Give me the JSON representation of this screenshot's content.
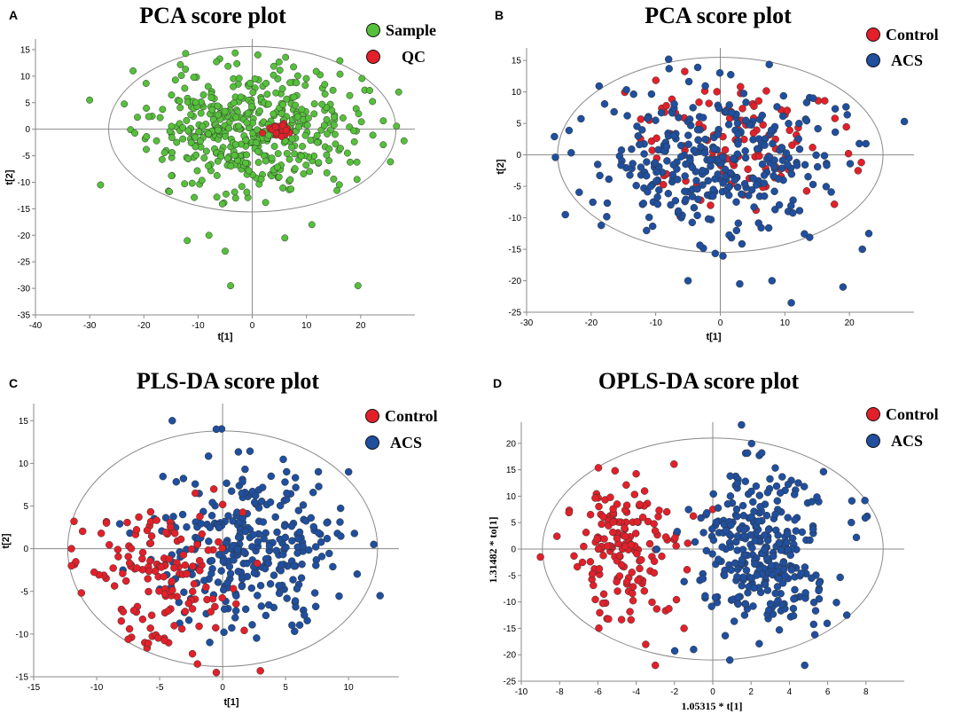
{
  "colors": {
    "green": "#55c03a",
    "red": "#e3202a",
    "blue": "#1f4f9e",
    "axis": "#8a8a8a",
    "ellipse": "#8a8a8a"
  },
  "chart_data": [
    {
      "letter": "A",
      "type": "scatter",
      "title": "PCA score plot",
      "xlabel": "t[1]",
      "ylabel": "t[2]",
      "xlim": [
        -40,
        30
      ],
      "ylim": [
        -35,
        17
      ],
      "xticks": [
        -40,
        -30,
        -20,
        -10,
        0,
        10,
        20
      ],
      "yticks": [
        15,
        10,
        5,
        0,
        -5,
        -10,
        -15,
        -20,
        -25,
        -30,
        -35
      ],
      "ellipse": {
        "rx": 26.5,
        "ry": 15.6
      },
      "legend": [
        {
          "label": "Sample",
          "color": "green"
        },
        {
          "label": "QC",
          "color": "red"
        }
      ],
      "series": [
        {
          "name": "Sample",
          "color": "green",
          "n": 470,
          "spread": [
            9.5,
            6.3
          ],
          "seed": 11,
          "extra": [
            [
              -30,
              5.5
            ],
            [
              -28,
              -10.5
            ],
            [
              -22,
              11
            ],
            [
              19.5,
              -29.5
            ],
            [
              -4,
              -29.5
            ],
            [
              -5,
              -23
            ],
            [
              28,
              -2.2
            ],
            [
              27,
              7
            ],
            [
              -12,
              -21
            ],
            [
              -8,
              -20
            ],
            [
              6,
              -20.5
            ],
            [
              11,
              -18
            ]
          ]
        },
        {
          "name": "QC",
          "color": "red",
          "n": 22,
          "center": [
            4.3,
            0
          ],
          "spread": [
            1.3,
            0.9
          ],
          "seed": 5,
          "extra": []
        }
      ]
    },
    {
      "letter": "B",
      "type": "scatter",
      "title": "PCA score plot",
      "xlabel": "t[1]",
      "ylabel": "t[2]",
      "xlim": [
        -30,
        30
      ],
      "ylim": [
        -25,
        17
      ],
      "xticks": [
        -30,
        -20,
        -10,
        0,
        10,
        20
      ],
      "yticks": [
        15,
        10,
        5,
        0,
        -5,
        -10,
        -15,
        -20,
        -25
      ],
      "ellipse": {
        "rx": 25.2,
        "ry": 15.5
      },
      "legend": [
        {
          "label": "Control",
          "color": "red"
        },
        {
          "label": "ACS",
          "color": "blue"
        }
      ],
      "series": [
        {
          "name": "Control",
          "color": "red",
          "n": 110,
          "center": [
            2,
            2
          ],
          "spread": [
            9,
            5.5
          ],
          "seed": 23,
          "extra": []
        },
        {
          "name": "ACS",
          "color": "blue",
          "n": 330,
          "center": [
            0,
            -1
          ],
          "spread": [
            9.5,
            6.3
          ],
          "seed": 37,
          "extra": [
            [
              -8,
              15.2
            ],
            [
              11,
              -23.5
            ],
            [
              8,
              -20
            ],
            [
              -5,
              -20
            ],
            [
              3,
              -20.5
            ],
            [
              28.5,
              5.3
            ],
            [
              22,
              -15
            ],
            [
              19,
              -21
            ],
            [
              23,
              -12.5
            ],
            [
              -24,
              -9.5
            ]
          ]
        }
      ]
    },
    {
      "letter": "C",
      "type": "scatter",
      "title": "PLS-DA score plot",
      "xlabel": "t[1]",
      "ylabel": "t[2]",
      "xlim": [
        -15,
        14
      ],
      "ylim": [
        -15,
        17
      ],
      "xticks": [
        -15,
        -10,
        -5,
        0,
        5,
        10
      ],
      "yticks": [
        15,
        10,
        5,
        0,
        -5,
        -10,
        -15
      ],
      "ellipse": {
        "rx": 12.3,
        "ry": 13.8
      },
      "legend": [
        {
          "label": "Control",
          "color": "red"
        },
        {
          "label": "ACS",
          "color": "blue"
        }
      ],
      "series": [
        {
          "name": "ACS",
          "color": "blue",
          "n": 300,
          "center": [
            2.2,
            0.5
          ],
          "spread": [
            3.6,
            5.3
          ],
          "seed": 41,
          "extra": [
            [
              -4,
              15
            ],
            [
              12,
              0.5
            ],
            [
              12.5,
              -5.5
            ],
            [
              10,
              9
            ],
            [
              -0.5,
              14
            ]
          ]
        },
        {
          "name": "Control",
          "color": "red",
          "n": 145,
          "center": [
            -5.2,
            -3.2
          ],
          "spread": [
            3.0,
            4.2
          ],
          "seed": 53,
          "extra": [
            [
              -12,
              0
            ],
            [
              -11.8,
              3.2
            ],
            [
              -12,
              -2
            ],
            [
              -0.5,
              -14.5
            ],
            [
              3,
              -14.3
            ],
            [
              -2,
              -13.5
            ]
          ]
        }
      ]
    },
    {
      "letter": "D",
      "type": "scatter",
      "title": "OPLS-DA score plot",
      "xlabel": "1.05315 * t[1]",
      "ylabel": "1.31482 * to[1]",
      "xlim": [
        -10,
        10
      ],
      "ylim": [
        -25,
        24
      ],
      "xticks": [
        -10,
        -8,
        -6,
        -4,
        -2,
        0,
        2,
        4,
        6,
        8
      ],
      "yticks": [
        20,
        15,
        10,
        5,
        0,
        -5,
        -10,
        -15,
        -20,
        -25
      ],
      "ellipse": {
        "rx": 8.9,
        "ry": 21.0
      },
      "legend": [
        {
          "label": "Control",
          "color": "red"
        },
        {
          "label": "ACS",
          "color": "blue"
        }
      ],
      "series": [
        {
          "name": "Control",
          "color": "red",
          "n": 160,
          "center": [
            -4.9,
            0
          ],
          "spread": [
            1.6,
            7.0
          ],
          "seed": 61,
          "extra": [
            [
              -9,
              -1.5
            ],
            [
              -3,
              -22
            ],
            [
              -1.5,
              -15
            ],
            [
              0,
              7.5
            ]
          ]
        },
        {
          "name": "ACS",
          "color": "blue",
          "n": 320,
          "center": [
            2.5,
            0
          ],
          "spread": [
            1.8,
            8.0
          ],
          "seed": 71,
          "extra": [
            [
              1.5,
              23.5
            ],
            [
              7.5,
              2.2
            ],
            [
              7,
              -12.5
            ],
            [
              4.8,
              -22
            ],
            [
              -1,
              -19
            ]
          ]
        }
      ]
    }
  ]
}
